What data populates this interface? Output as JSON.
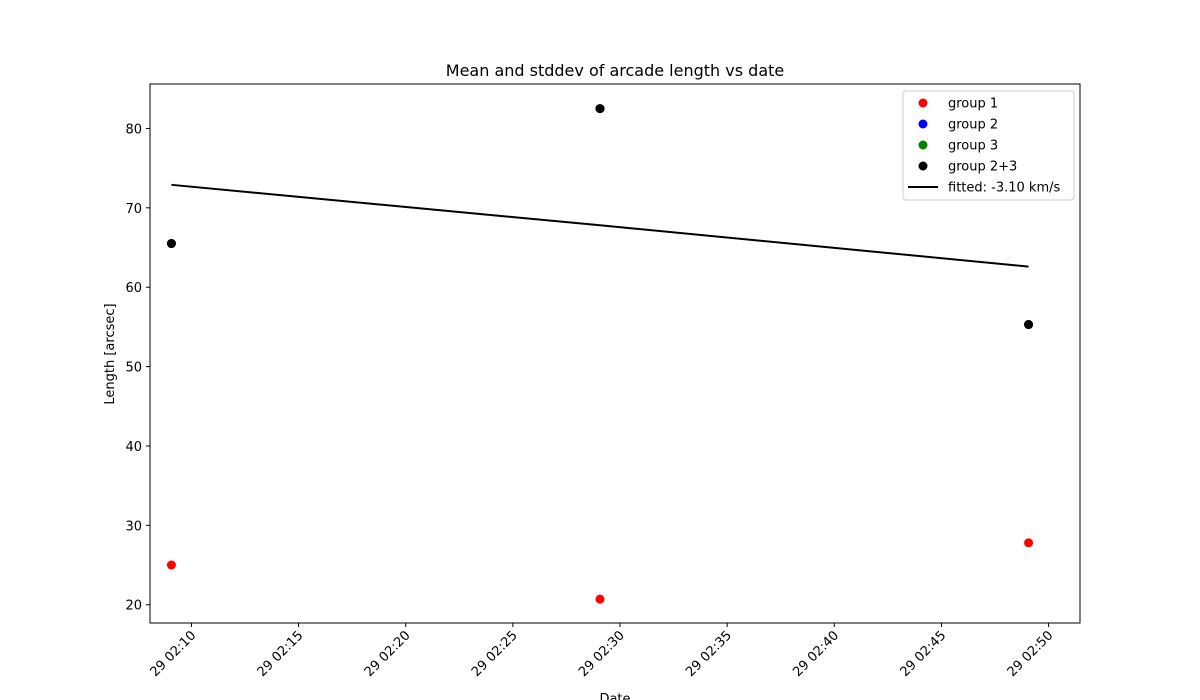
{
  "chart_data": {
    "type": "scatter",
    "title": "Mean and stddev of arcade length vs date",
    "xlabel": "Date",
    "ylabel": "Length [arcsec]",
    "x_ticks": [
      "29 02:10",
      "29 02:15",
      "29 02:20",
      "29 02:25",
      "29 02:30",
      "29 02:35",
      "29 02:40",
      "29 02:45",
      "29 02:50"
    ],
    "y_ticks": [
      20,
      30,
      40,
      50,
      60,
      70,
      80
    ],
    "xlim": [
      "29 02:08:04",
      "29 02:51:28"
    ],
    "ylim": [
      17.7,
      85.6
    ],
    "grid": false,
    "legend_position": "top-right",
    "x": [
      "29 02:09:04",
      "29 02:29:04",
      "29 02:49:04"
    ],
    "series": [
      {
        "name": "group 1",
        "kind": "scatter",
        "color": "#ff0000",
        "values": [
          25.0,
          20.7,
          27.8
        ]
      },
      {
        "name": "group 2",
        "kind": "scatter",
        "color": "#0000ff",
        "values": [
          65.5,
          82.5,
          55.3
        ]
      },
      {
        "name": "group 3",
        "kind": "scatter",
        "color": "#008000",
        "values": [
          65.5,
          82.5,
          55.3
        ]
      },
      {
        "name": "group 2+3",
        "kind": "scatter",
        "color": "#000000",
        "values": [
          65.5,
          82.5,
          55.3
        ]
      },
      {
        "name": "fitted: -3.10 km/s",
        "kind": "line",
        "color": "#000000",
        "values": [
          72.9,
          67.8,
          62.6
        ]
      }
    ]
  }
}
